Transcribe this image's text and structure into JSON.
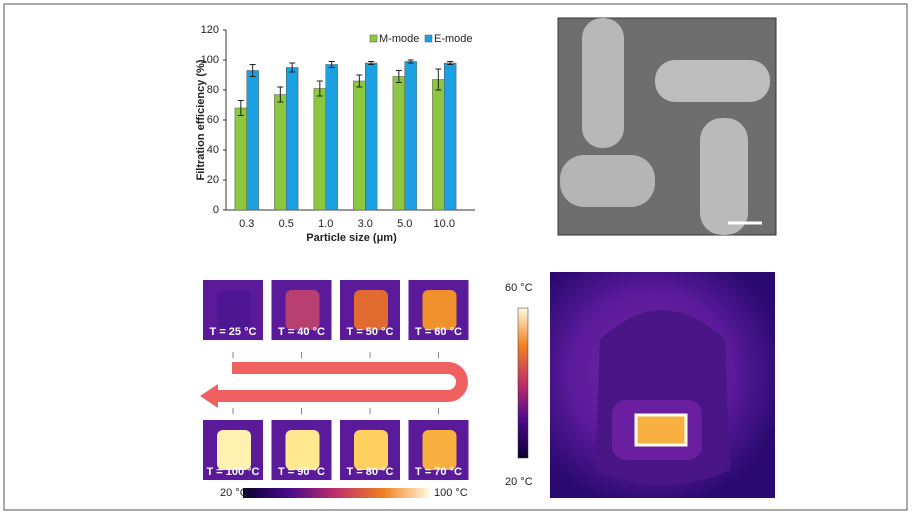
{
  "chart_data": {
    "type": "bar",
    "ylabel": "Filtration efficiency (%)",
    "xlabel": "Particle size (μm)",
    "categories": [
      "0.3",
      "0.5",
      "1.0",
      "3.0",
      "5.0",
      "10.0"
    ],
    "series": [
      {
        "name": "M-mode",
        "color": "#8dc63f",
        "values": [
          68,
          77,
          81,
          86,
          89,
          87
        ],
        "errors": [
          5,
          5,
          5,
          4,
          4,
          7
        ]
      },
      {
        "name": "E-mode",
        "color": "#1ba1e2",
        "values": [
          93,
          95,
          97,
          98,
          99,
          98
        ],
        "errors": [
          4,
          3,
          2,
          1,
          1,
          1
        ]
      }
    ],
    "ylim": [
      0,
      120
    ],
    "yticks": [
      0,
      20,
      40,
      60,
      80,
      100,
      120
    ],
    "legend": "top-right"
  },
  "thermal_sequence": {
    "labels": [
      "T = 25 °C",
      "T = 40 °C",
      "T = 50 °C",
      "T = 60 °C",
      "T = 100 °C",
      "T = 90 °C",
      "T = 80 °C",
      "T = 70 °C"
    ],
    "colorbar_min": "20 °C",
    "colorbar_max": "100 °C"
  },
  "face_image": {
    "colorbar_max": "60 °C",
    "colorbar_min": "20 °C"
  }
}
